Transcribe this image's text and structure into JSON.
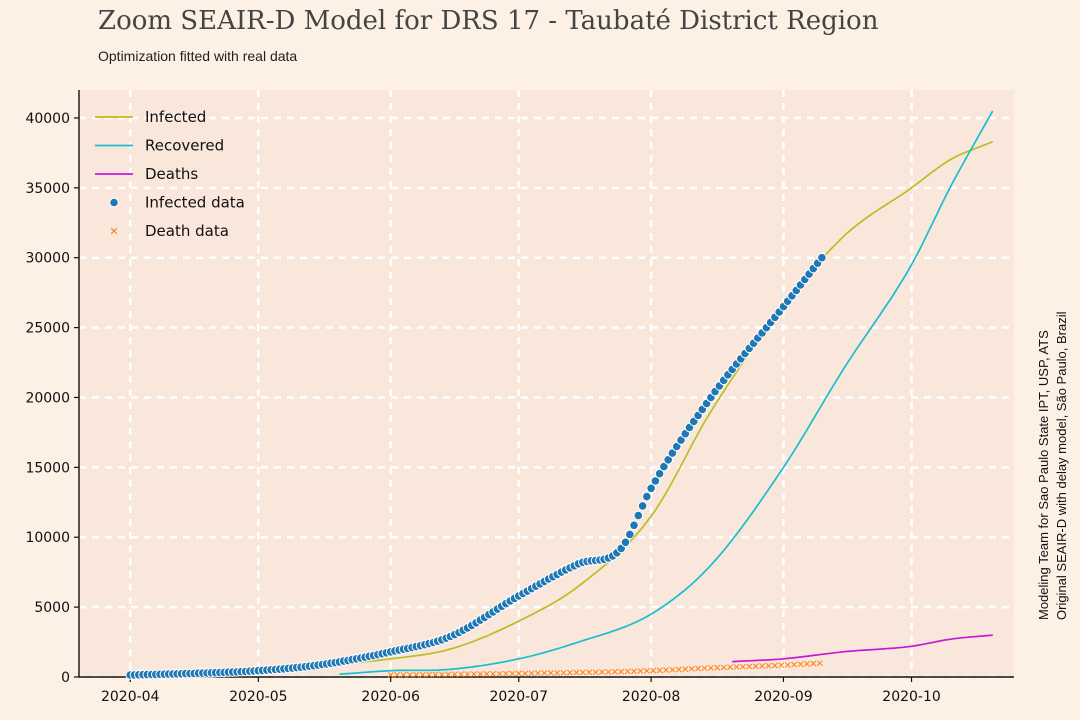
{
  "title": "Zoom SEAIR-D Model for DRS 17 - Taubaté District Region",
  "subtitle": "Optimization fitted with real data",
  "credits": {
    "line1": "Modeling Team for Sao Paulo State IPT, USP, ATS",
    "line2": "Original SEAIR-D with delay model, São Paulo, Brazil"
  },
  "colors": {
    "background": "#fdf0e5",
    "plot_background": "#fae7dc",
    "grid": "#ffffff",
    "infected": "#bcbd22",
    "recovered": "#17becf",
    "deaths": "#c51bd6",
    "infected_data": "#1f77b4",
    "death_data": "#ff7f0e"
  },
  "chart_data": {
    "type": "line",
    "title": "Zoom SEAIR-D Model for DRS 17 - Taubaté District Region",
    "subtitle": "Optimization fitted with real data",
    "xlabel": "",
    "ylabel": "",
    "x_type": "date",
    "xlim": [
      "2020-03-20",
      "2020-10-25"
    ],
    "ylim": [
      0,
      42000
    ],
    "x_ticks": [
      "2020-04",
      "2020-05",
      "2020-06",
      "2020-07",
      "2020-08",
      "2020-09",
      "2020-10"
    ],
    "y_ticks": [
      0,
      5000,
      10000,
      15000,
      20000,
      25000,
      30000,
      35000,
      40000
    ],
    "grid": true,
    "legend_position": "top-left",
    "series": [
      {
        "name": "Infected",
        "kind": "line",
        "color": "#bcbd22",
        "points": [
          [
            "2020-04-01",
            150
          ],
          [
            "2020-04-15",
            250
          ],
          [
            "2020-05-01",
            500
          ],
          [
            "2020-05-15",
            800
          ],
          [
            "2020-06-01",
            1300
          ],
          [
            "2020-06-15",
            2000
          ],
          [
            "2020-07-01",
            4000
          ],
          [
            "2020-07-15",
            6500
          ],
          [
            "2020-08-01",
            11500
          ],
          [
            "2020-08-15",
            19000
          ],
          [
            "2020-09-01",
            26500
          ],
          [
            "2020-09-15",
            31500
          ],
          [
            "2020-10-01",
            35000
          ],
          [
            "2020-10-10",
            37000
          ],
          [
            "2020-10-20",
            38300
          ]
        ]
      },
      {
        "name": "Recovered",
        "kind": "line",
        "color": "#17becf",
        "points": [
          [
            "2020-05-20",
            200
          ],
          [
            "2020-06-01",
            450
          ],
          [
            "2020-06-15",
            550
          ],
          [
            "2020-07-01",
            1300
          ],
          [
            "2020-07-15",
            2500
          ],
          [
            "2020-08-01",
            4500
          ],
          [
            "2020-08-15",
            8000
          ],
          [
            "2020-09-01",
            15000
          ],
          [
            "2020-09-15",
            22000
          ],
          [
            "2020-10-01",
            29500
          ],
          [
            "2020-10-10",
            35000
          ],
          [
            "2020-10-20",
            40500
          ]
        ]
      },
      {
        "name": "Deaths",
        "kind": "line",
        "color": "#c51bd6",
        "points": [
          [
            "2020-08-20",
            1100
          ],
          [
            "2020-09-01",
            1300
          ],
          [
            "2020-09-15",
            1800
          ],
          [
            "2020-10-01",
            2200
          ],
          [
            "2020-10-10",
            2700
          ],
          [
            "2020-10-20",
            3000
          ]
        ]
      },
      {
        "name": "Infected data",
        "kind": "scatter",
        "marker": "dot",
        "color": "#1f77b4",
        "points": [
          [
            "2020-04-01",
            140
          ],
          [
            "2020-04-15",
            250
          ],
          [
            "2020-05-01",
            450
          ],
          [
            "2020-05-15",
            850
          ],
          [
            "2020-06-01",
            1800
          ],
          [
            "2020-06-15",
            2900
          ],
          [
            "2020-07-01",
            5800
          ],
          [
            "2020-07-15",
            8100
          ],
          [
            "2020-07-25",
            9200
          ],
          [
            "2020-08-01",
            13500
          ],
          [
            "2020-08-15",
            20000
          ],
          [
            "2020-09-01",
            26500
          ],
          [
            "2020-09-10",
            30000
          ]
        ]
      },
      {
        "name": "Death data",
        "kind": "scatter",
        "marker": "x",
        "color": "#ff7f0e",
        "points": [
          [
            "2020-06-01",
            150
          ],
          [
            "2020-07-01",
            250
          ],
          [
            "2020-08-01",
            450
          ],
          [
            "2020-08-15",
            650
          ],
          [
            "2020-09-01",
            850
          ],
          [
            "2020-09-10",
            1000
          ]
        ]
      }
    ]
  }
}
